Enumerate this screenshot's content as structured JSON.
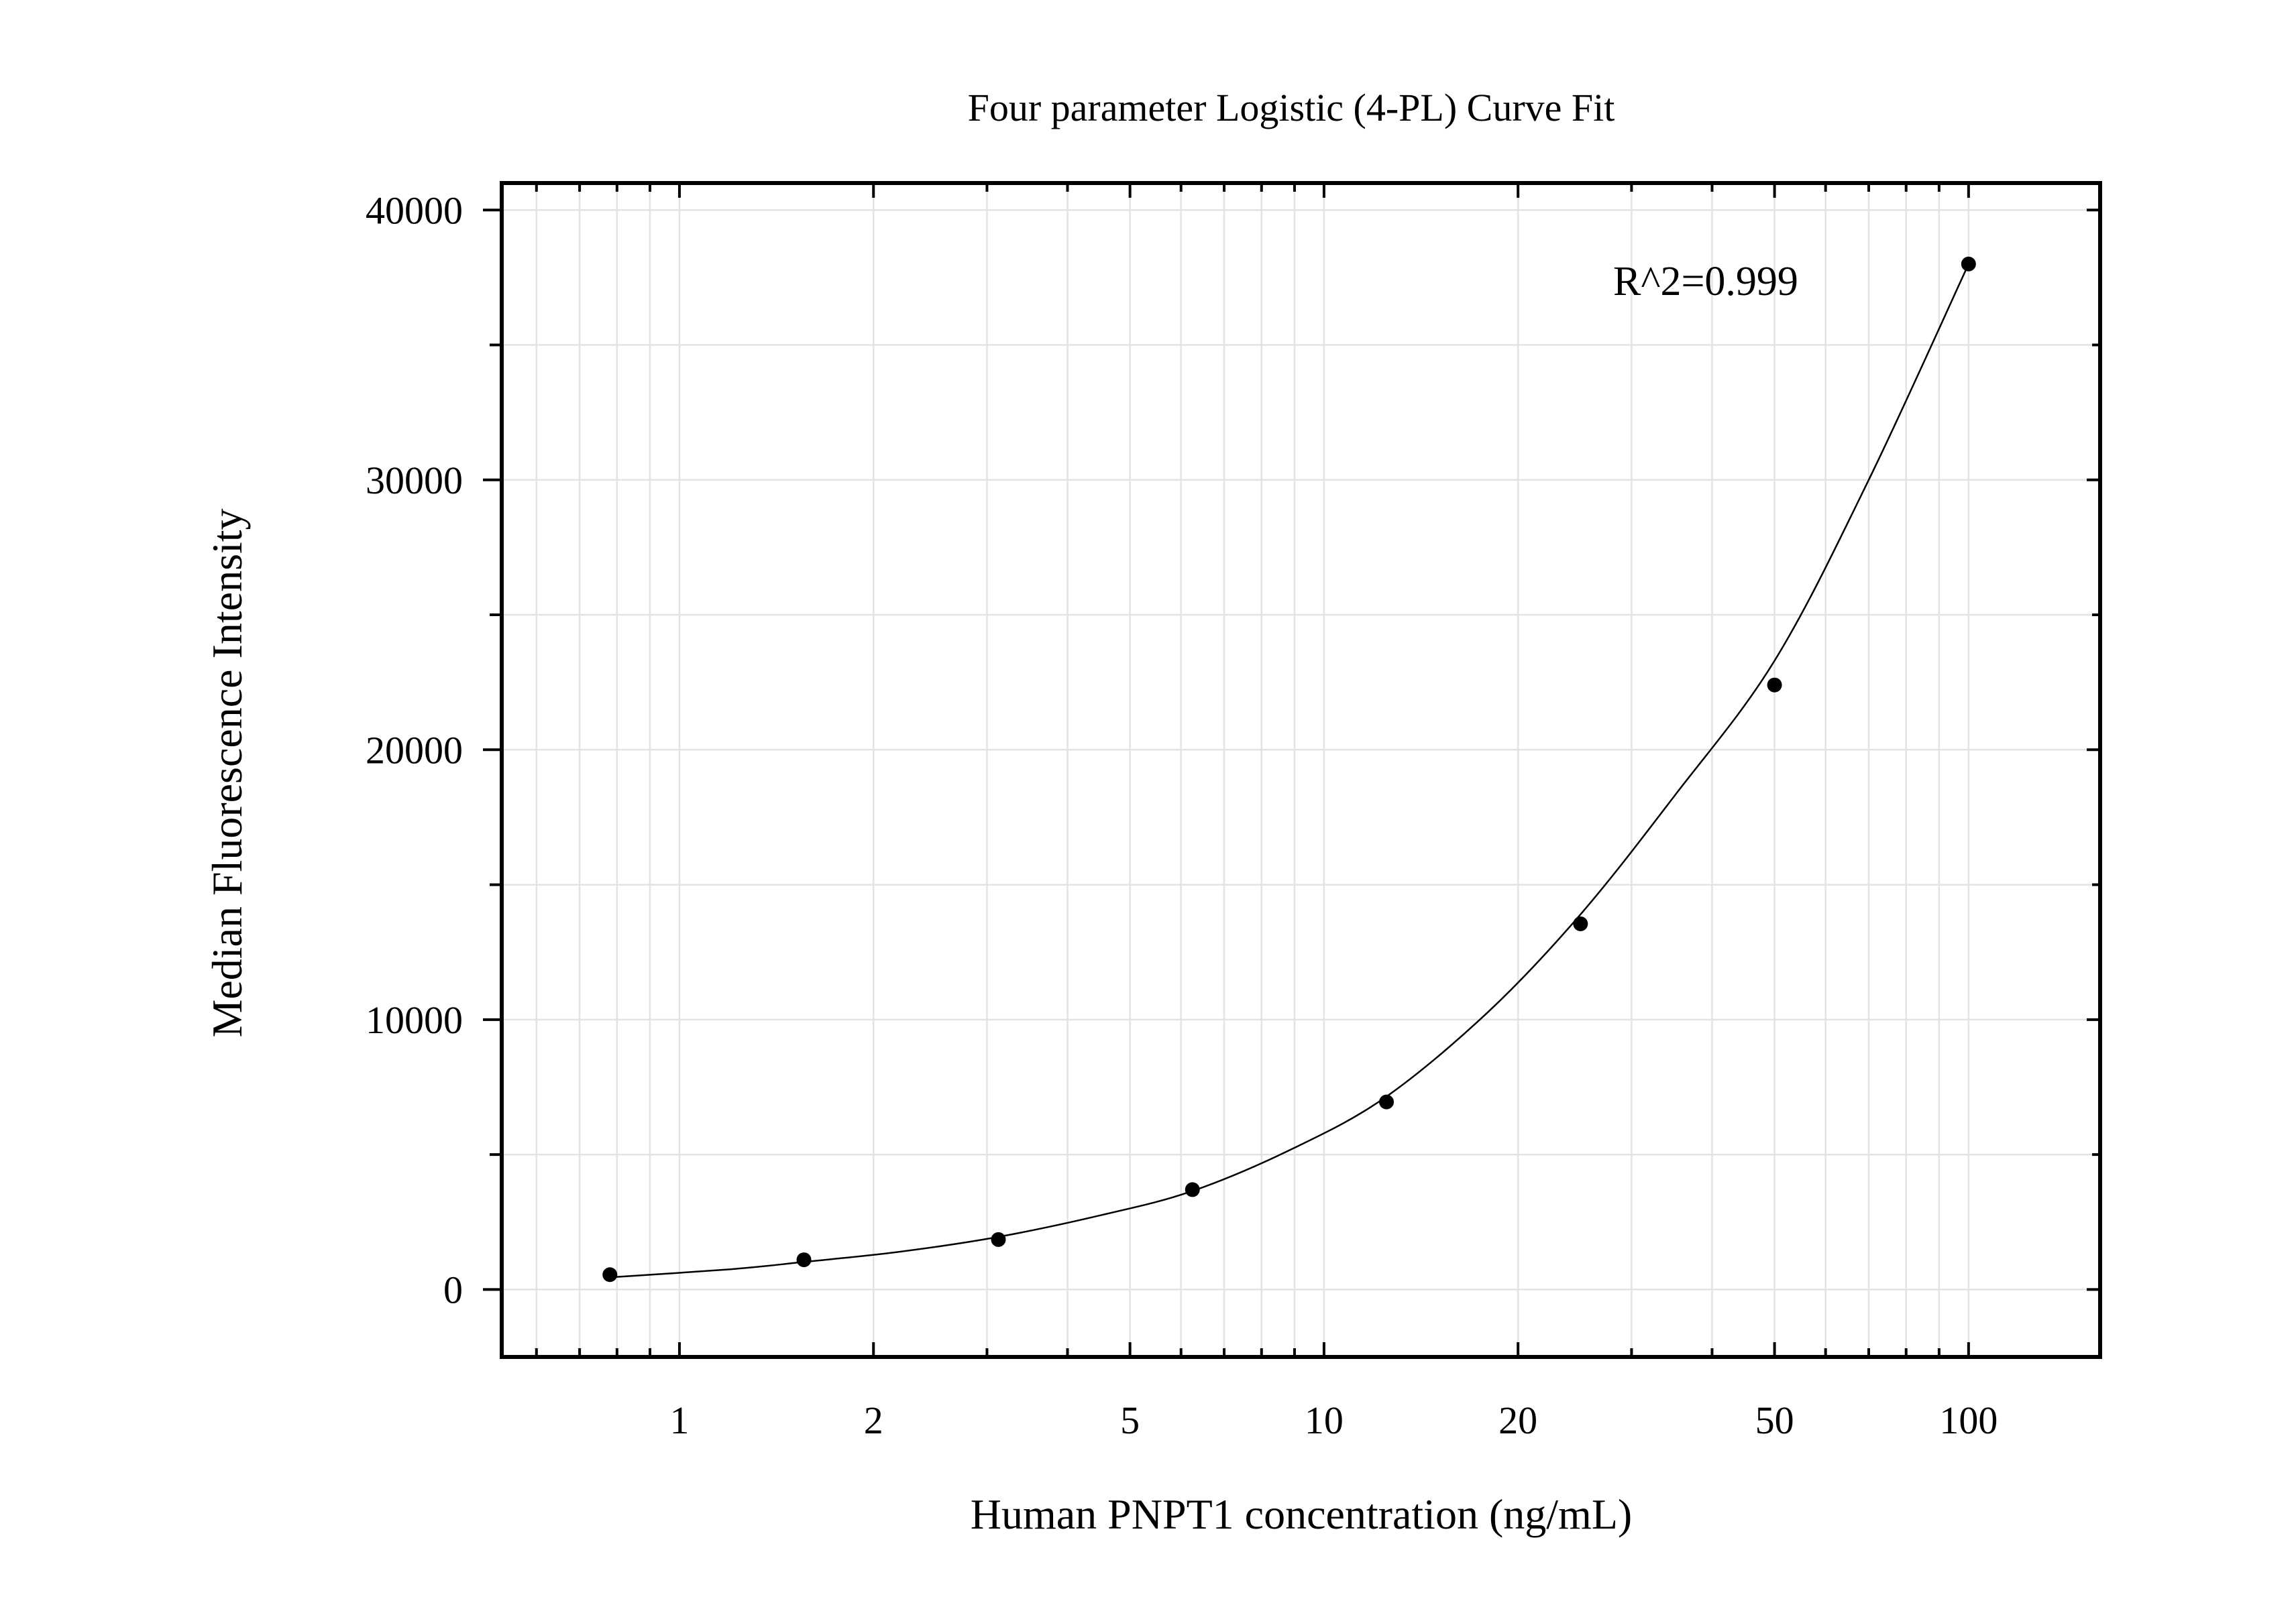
{
  "chart_data": {
    "type": "scatter",
    "title": "Four parameter Logistic (4-PL) Curve Fit",
    "xlabel": "Human PNPT1 concentration (ng/mL)",
    "ylabel": "Median Fluorescence Intensity",
    "x_scale": "log",
    "xlim": [
      0.53,
      160
    ],
    "ylim": [
      -2500,
      41000
    ],
    "x_ticks": [
      1,
      2,
      5,
      10,
      20,
      50,
      100
    ],
    "x_tick_labels": [
      "1",
      "2",
      "5",
      "10",
      "20",
      "50",
      "100"
    ],
    "y_ticks": [
      0,
      10000,
      20000,
      30000,
      40000
    ],
    "y_tick_labels": [
      "0",
      "10000",
      "20000",
      "30000",
      "40000"
    ],
    "y_minor_ticks": [
      5000,
      15000,
      25000,
      35000
    ],
    "grid": true,
    "annotation": "R^2=0.999",
    "series": [
      {
        "type": "scatter",
        "x": [
          0.78,
          1.56,
          3.125,
          6.25,
          12.5,
          25,
          50,
          100
        ],
        "y": [
          550,
          1100,
          1850,
          3700,
          6950,
          13550,
          22400,
          38000
        ]
      }
    ],
    "fit_curve": {
      "x": [
        0.78,
        1.2,
        1.56,
        2.2,
        3.125,
        4.5,
        6.25,
        9,
        12.5,
        18,
        25,
        35,
        50,
        70,
        100
      ],
      "y": [
        450,
        750,
        1020,
        1400,
        1950,
        2750,
        3650,
        5250,
        7150,
        10300,
        13900,
        18300,
        23300,
        30000,
        38000
      ]
    },
    "colors": {
      "points": "#000000",
      "curve": "#000000",
      "grid": "#e3e3e3"
    }
  }
}
